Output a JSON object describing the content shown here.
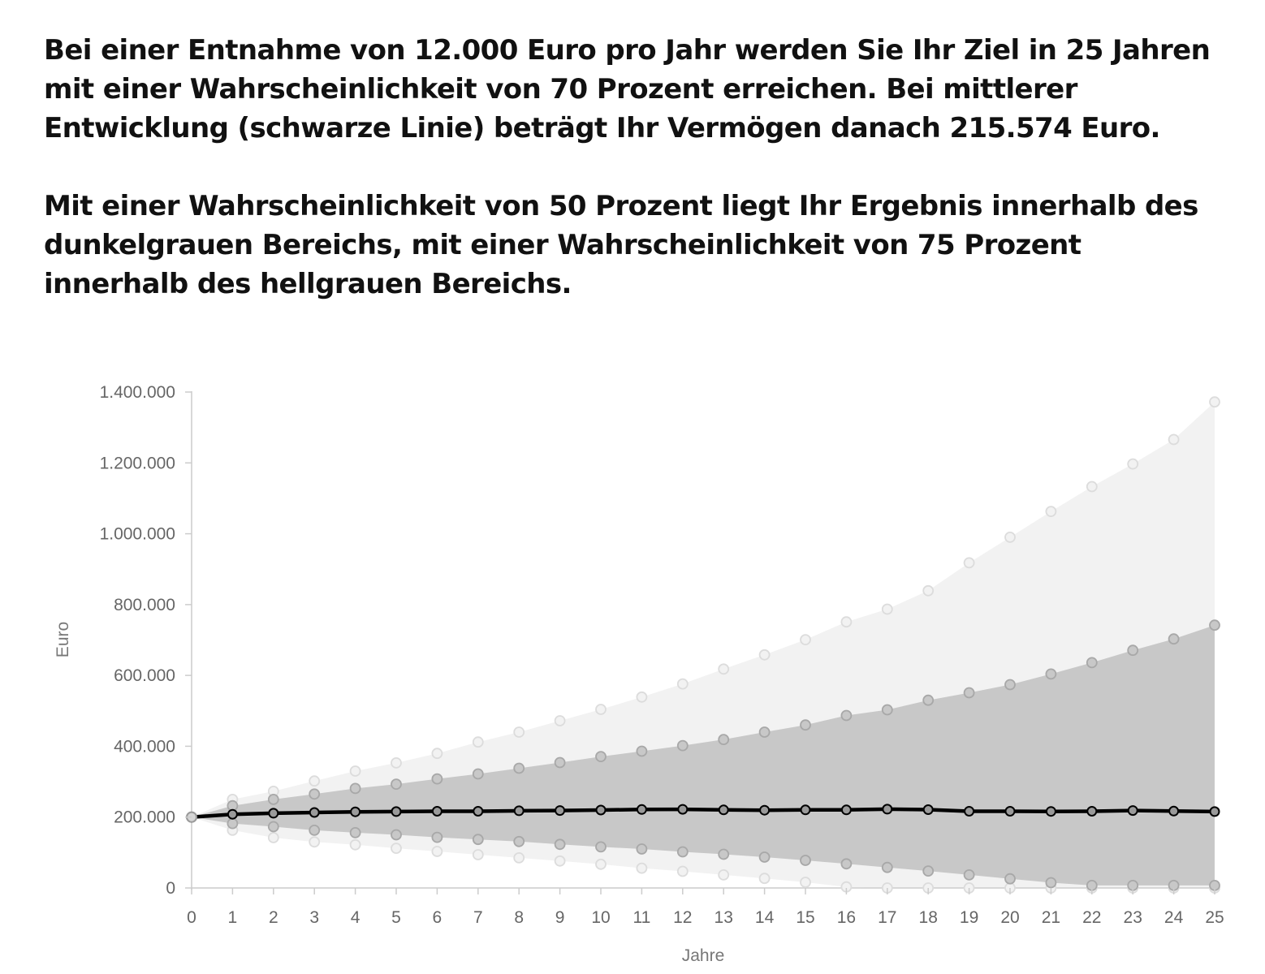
{
  "summary": {
    "paragraph_1": "Bei einer Entnahme von 12.000 Euro pro Jahr werden Sie Ihr Ziel in 25 Jahren mit einer Wahrscheinlichkeit von 70 Prozent erreichen. Bei mittlerer Entwicklung (schwarze Linie) beträgt Ihr Vermögen danach 215.574 Euro.",
    "paragraph_2": "Mit einer Wahrscheinlichkeit von 50 Prozent liegt Ihr Ergebnis innerhalb des dunkelgrauen Bereichs, mit einer Wahrscheinlichkeit von 75 Prozent innerhalb des hellgrauen Bereichs."
  },
  "chart_data": {
    "type": "area",
    "xlabel": "Jahre",
    "ylabel": "Euro",
    "ylim": [
      0,
      1400000
    ],
    "x": [
      0,
      1,
      2,
      3,
      4,
      5,
      6,
      7,
      8,
      9,
      10,
      11,
      12,
      13,
      14,
      15,
      16,
      17,
      18,
      19,
      20,
      21,
      22,
      23,
      24,
      25
    ],
    "x_tick_labels": [
      "0",
      "1",
      "2",
      "3",
      "4",
      "5",
      "6",
      "7",
      "8",
      "9",
      "10",
      "11",
      "12",
      "13",
      "14",
      "15",
      "16",
      "17",
      "18",
      "19",
      "20",
      "21",
      "22",
      "23",
      "24",
      "25"
    ],
    "y_ticks": [
      0,
      200000,
      400000,
      600000,
      800000,
      1000000,
      1200000,
      1400000
    ],
    "y_tick_labels": [
      "0",
      "200.000",
      "400.000",
      "600.000",
      "800.000",
      "1.000.000",
      "1.200.000",
      "1.400.000"
    ],
    "grid": false,
    "legend": "none",
    "bands": [
      {
        "role": "outer",
        "color": "#f2f2f2",
        "marker_color": "#dcdcdc",
        "upper": [
          200000,
          250000,
          273000,
          302000,
          330000,
          353000,
          380000,
          412000,
          440000,
          472000,
          504000,
          539000,
          576000,
          618000,
          658000,
          701000,
          751000,
          787000,
          839000,
          918000,
          990000,
          1063000,
          1133000,
          1197000,
          1266000,
          1372000
        ],
        "lower": [
          200000,
          163000,
          142000,
          130000,
          122000,
          112000,
          103000,
          94000,
          85000,
          76000,
          67000,
          56000,
          47000,
          37000,
          27000,
          16000,
          3000,
          0,
          0,
          0,
          0,
          0,
          0,
          0,
          0,
          0
        ]
      },
      {
        "role": "inner",
        "color": "#c8c8c8",
        "marker_color": "#a8a8a8",
        "upper": [
          200000,
          232000,
          250000,
          265000,
          281000,
          293000,
          308000,
          322000,
          338000,
          354000,
          371000,
          386000,
          402000,
          419000,
          440000,
          460000,
          487000,
          503000,
          530000,
          551000,
          574000,
          604000,
          636000,
          671000,
          703000,
          742000
        ],
        "lower": [
          200000,
          182000,
          173000,
          163000,
          156000,
          150000,
          143000,
          137000,
          131000,
          123000,
          116000,
          110000,
          102000,
          95000,
          87000,
          78000,
          68000,
          58000,
          48000,
          37000,
          26000,
          15000,
          7000,
          7000,
          7000,
          7000
        ]
      }
    ],
    "series": [
      {
        "role": "median",
        "color": "#000000",
        "values": [
          200000,
          208000,
          211000,
          213000,
          215000,
          215500,
          216500,
          216500,
          218000,
          218500,
          220000,
          221500,
          222000,
          220500,
          219500,
          220500,
          220500,
          222500,
          221000,
          216500,
          216500,
          216000,
          216500,
          218500,
          217000,
          215574
        ]
      }
    ]
  }
}
